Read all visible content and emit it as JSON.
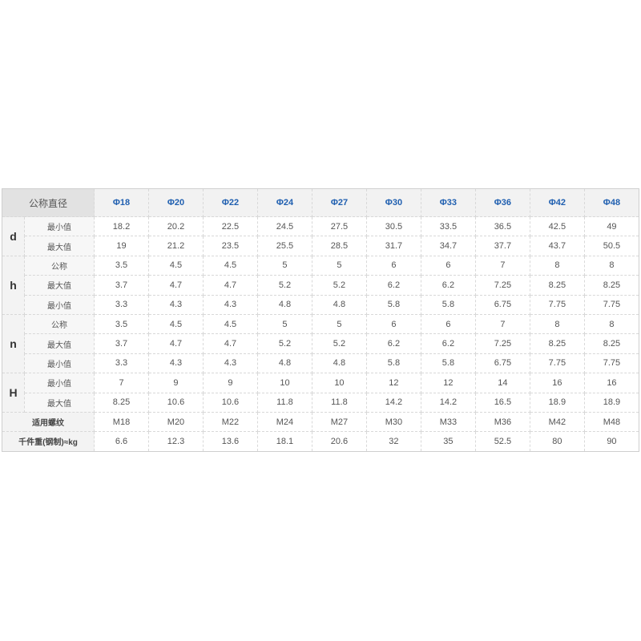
{
  "header": {
    "corner": "公称直径",
    "columns": [
      "Φ18",
      "Φ20",
      "Φ22",
      "Φ24",
      "Φ27",
      "Φ30",
      "Φ33",
      "Φ36",
      "Φ42",
      "Φ48"
    ]
  },
  "groups": [
    {
      "name": "d",
      "rows": [
        {
          "label": "最小值",
          "values": [
            "18.2",
            "20.2",
            "22.5",
            "24.5",
            "27.5",
            "30.5",
            "33.5",
            "36.5",
            "42.5",
            "49"
          ]
        },
        {
          "label": "最大值",
          "values": [
            "19",
            "21.2",
            "23.5",
            "25.5",
            "28.5",
            "31.7",
            "34.7",
            "37.7",
            "43.7",
            "50.5"
          ]
        }
      ]
    },
    {
      "name": "h",
      "rows": [
        {
          "label": "公称",
          "values": [
            "3.5",
            "4.5",
            "4.5",
            "5",
            "5",
            "6",
            "6",
            "7",
            "8",
            "8"
          ]
        },
        {
          "label": "最大值",
          "values": [
            "3.7",
            "4.7",
            "4.7",
            "5.2",
            "5.2",
            "6.2",
            "6.2",
            "7.25",
            "8.25",
            "8.25"
          ]
        },
        {
          "label": "最小值",
          "values": [
            "3.3",
            "4.3",
            "4.3",
            "4.8",
            "4.8",
            "5.8",
            "5.8",
            "6.75",
            "7.75",
            "7.75"
          ]
        }
      ]
    },
    {
      "name": "n",
      "rows": [
        {
          "label": "公称",
          "values": [
            "3.5",
            "4.5",
            "4.5",
            "5",
            "5",
            "6",
            "6",
            "7",
            "8",
            "8"
          ]
        },
        {
          "label": "最大值",
          "values": [
            "3.7",
            "4.7",
            "4.7",
            "5.2",
            "5.2",
            "6.2",
            "6.2",
            "7.25",
            "8.25",
            "8.25"
          ]
        },
        {
          "label": "最小值",
          "values": [
            "3.3",
            "4.3",
            "4.3",
            "4.8",
            "4.8",
            "5.8",
            "5.8",
            "6.75",
            "7.75",
            "7.75"
          ]
        }
      ]
    },
    {
      "name": "H",
      "rows": [
        {
          "label": "最小值",
          "values": [
            "7",
            "9",
            "9",
            "10",
            "10",
            "12",
            "12",
            "14",
            "16",
            "16"
          ]
        },
        {
          "label": "最大值",
          "values": [
            "8.25",
            "10.6",
            "10.6",
            "11.8",
            "11.8",
            "14.2",
            "14.2",
            "16.5",
            "18.9",
            "18.9"
          ]
        }
      ]
    }
  ],
  "footer_rows": [
    {
      "label": "适用螺纹",
      "values": [
        "M18",
        "M20",
        "M22",
        "M24",
        "M27",
        "M30",
        "M33",
        "M36",
        "M42",
        "M48"
      ]
    },
    {
      "label": "千件重(钢制)≈kg",
      "values": [
        "6.6",
        "12.3",
        "13.6",
        "18.1",
        "20.6",
        "32",
        "35",
        "52.5",
        "80",
        "90"
      ]
    }
  ],
  "colors": {
    "header_text": "#1f5fb0",
    "border": "#d8d8d8"
  }
}
